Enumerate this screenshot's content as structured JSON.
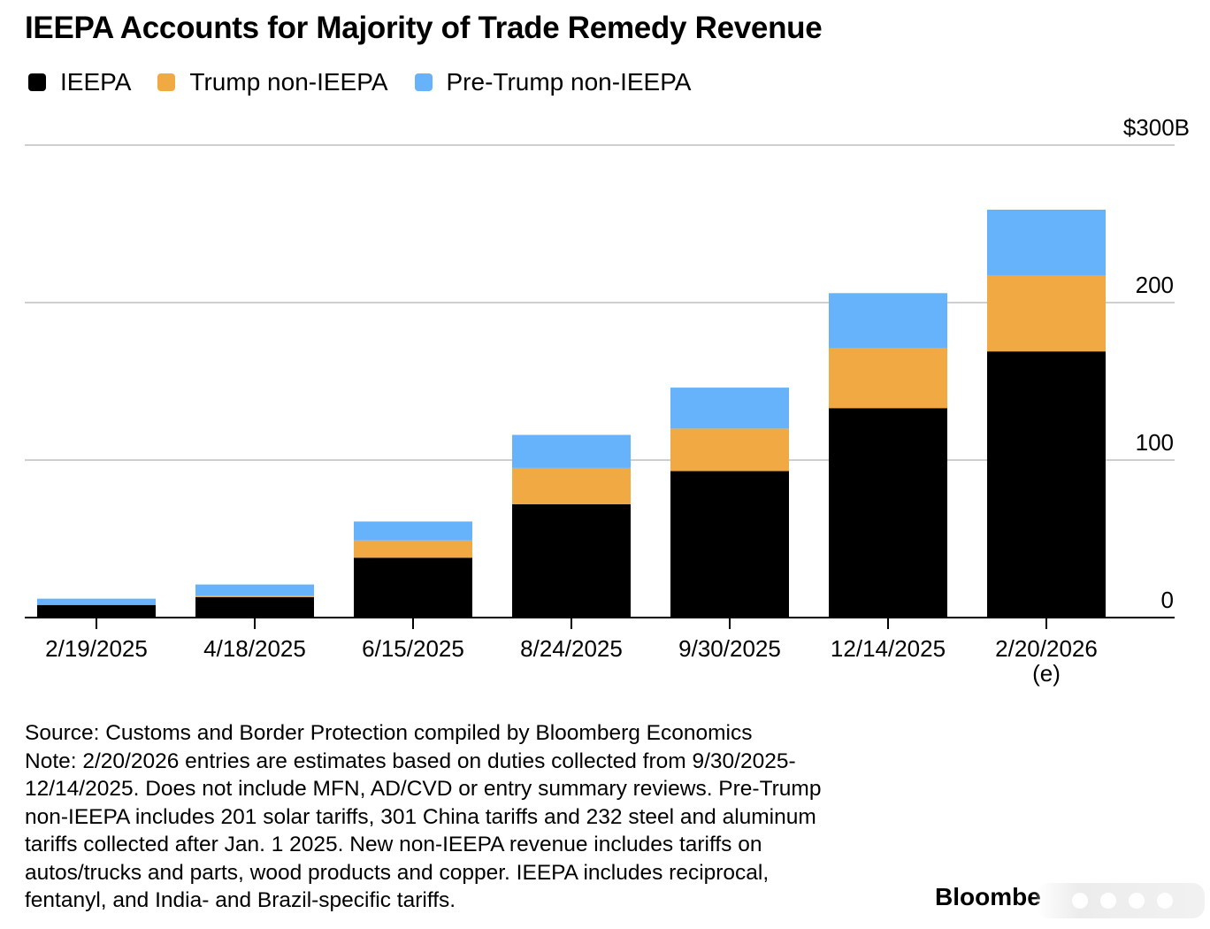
{
  "title": "IEEPA Accounts for Majority of Trade Remedy Revenue",
  "legend": {
    "items": [
      {
        "label": "IEEPA",
        "color": "#000000"
      },
      {
        "label": "Trump non-IEEPA",
        "color": "#f0a943"
      },
      {
        "label": "Pre-Trump non-IEEPA",
        "color": "#66b2fb"
      }
    ]
  },
  "chart_data": {
    "type": "bar",
    "stacked": true,
    "categories": [
      "2/19/2025",
      "4/18/2025",
      "6/15/2025",
      "8/24/2025",
      "9/30/2025",
      "12/14/2025",
      "2/20/2026"
    ],
    "category_sublabels": [
      "",
      "",
      "",
      "",
      "",
      "",
      "(e)"
    ],
    "series": [
      {
        "name": "IEEPA",
        "color": "#000000",
        "values": [
          8,
          13,
          38,
          72,
          93,
          133,
          169
        ]
      },
      {
        "name": "Trump non-IEEPA",
        "color": "#f0a943",
        "values": [
          0,
          1,
          11,
          23,
          27,
          38,
          48
        ]
      },
      {
        "name": "Pre-Trump non-IEEPA",
        "color": "#66b2fb",
        "values": [
          4,
          7,
          12,
          21,
          26,
          35,
          42
        ]
      }
    ],
    "ylim": [
      0,
      300
    ],
    "yticks": [
      0,
      100,
      200,
      300
    ],
    "ytick_labels": [
      "0",
      "100",
      "200",
      "$300B"
    ],
    "y_axis_side": "right",
    "grid": true
  },
  "footnote": {
    "lines": [
      "Source: Customs and Border Protection compiled by Bloomberg Economics",
      "Note: 2/20/2026 entries are estimates based on duties collected from 9/30/2025-",
      "12/14/2025. Does not include MFN, AD/CVD or entry summary reviews. Pre-Trump",
      "non-IEEPA includes 201 solar tariffs, 301 China tariffs and 232 steel and aluminum",
      "tariffs collected after Jan. 1 2025. New non-IEEPA revenue includes tariffs on",
      "autos/trucks and parts, wood products and copper. IEEPA includes reciprocal,",
      "fentanyl, and India- and Brazil-specific tariffs."
    ]
  },
  "brand": "Bloombe"
}
